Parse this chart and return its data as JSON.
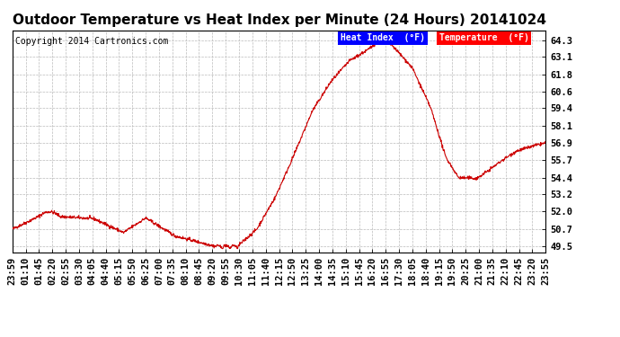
{
  "title": "Outdoor Temperature vs Heat Index per Minute (24 Hours) 20141024",
  "copyright": "Copyright 2014 Cartronics.com",
  "legend_heat_index": "Heat Index  (°F)",
  "legend_temperature": "Temperature  (°F)",
  "y_tick_labels": [
    "49.5",
    "50.7",
    "52.0",
    "53.2",
    "54.4",
    "55.7",
    "56.9",
    "58.1",
    "59.4",
    "60.6",
    "61.8",
    "63.1",
    "64.3"
  ],
  "y_tick_values": [
    49.5,
    50.7,
    52.0,
    53.2,
    54.4,
    55.7,
    56.9,
    58.1,
    59.4,
    60.6,
    61.8,
    63.1,
    64.3
  ],
  "x_tick_labels": [
    "23:59",
    "01:10",
    "01:45",
    "02:20",
    "02:55",
    "03:30",
    "04:05",
    "04:40",
    "05:15",
    "05:50",
    "06:25",
    "07:00",
    "07:35",
    "08:10",
    "08:45",
    "09:20",
    "09:55",
    "10:30",
    "11:05",
    "11:40",
    "12:15",
    "12:50",
    "13:25",
    "14:00",
    "14:35",
    "15:10",
    "15:45",
    "16:20",
    "16:55",
    "17:30",
    "18:05",
    "18:40",
    "19:15",
    "19:50",
    "20:25",
    "21:00",
    "21:35",
    "22:10",
    "22:45",
    "23:20",
    "23:55"
  ],
  "line_color": "#cc0000",
  "bg_color": "#ffffff",
  "grid_color": "#bbbbbb",
  "title_fontsize": 11,
  "copyright_fontsize": 7,
  "axis_tick_fontsize": 7.5,
  "ylim_min": 49.0,
  "ylim_max": 65.0
}
